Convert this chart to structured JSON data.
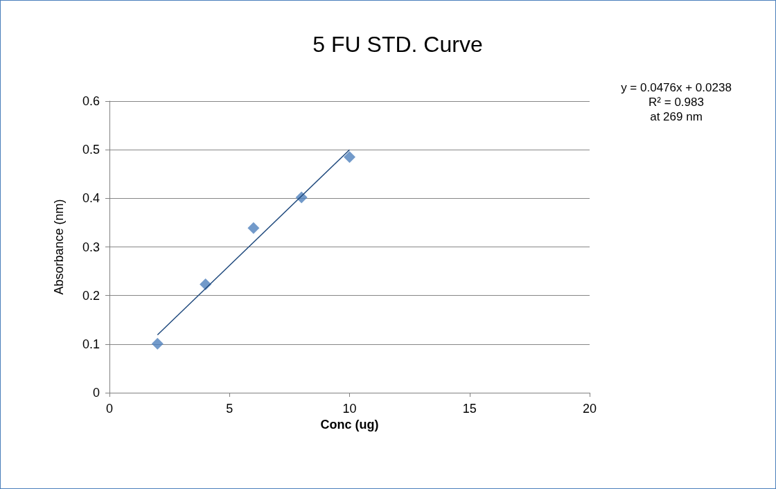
{
  "chart_data": {
    "type": "scatter",
    "title": "5 FU STD. Curve",
    "xlabel": "Conc (ug)",
    "ylabel": "Absorbance (nm)",
    "annotations": [
      "y = 0.0476x + 0.0238",
      "R² = 0.983",
      "at 269 nm"
    ],
    "x": [
      2,
      4,
      6,
      8,
      10
    ],
    "series": [
      {
        "color": "#4f81bd",
        "marker": "diamond",
        "values": [
          0.101,
          0.223,
          0.339,
          0.402,
          0.485
        ]
      },
      {
        "type": "line",
        "color": "#1f497d",
        "marker": "none",
        "line_style": "solid",
        "x": [
          2,
          10
        ],
        "values": [
          0.119,
          0.5
        ]
      }
    ],
    "xlim": [
      0,
      20
    ],
    "xticks": [
      0,
      5,
      10,
      15,
      20
    ],
    "ylim": [
      0,
      0.6
    ],
    "yticks": [
      0,
      0.1,
      0.2,
      0.3,
      0.4,
      0.5,
      0.6
    ],
    "grid": "y"
  }
}
